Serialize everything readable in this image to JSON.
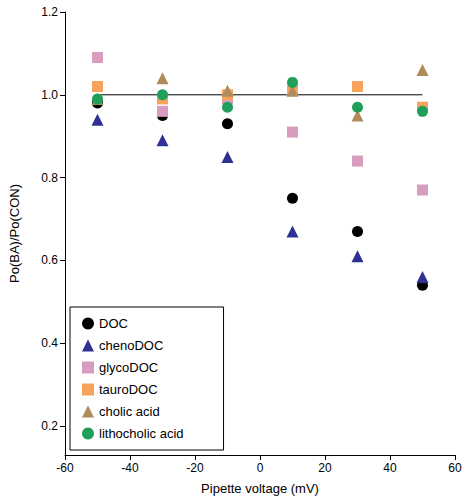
{
  "chart_data": {
    "type": "scatter",
    "x_label": "Pipette voltage (mV)",
    "y_label": "Po(BA)/Po(CON)",
    "xlim": [
      -60,
      60
    ],
    "xticks": [
      -60,
      -40,
      -20,
      0,
      20,
      40,
      60
    ],
    "ylim": [
      0.13,
      1.2
    ],
    "yticks": [
      0.2,
      0.4,
      0.6,
      0.8,
      {
        "value": 1,
        "label": "1.0"
      },
      1.2
    ],
    "grid": false,
    "legend": "lower left",
    "reference_lines": [
      {
        "y": 1,
        "x": [
          -50,
          50
        ],
        "color": "#000000"
      }
    ],
    "x": [
      -50,
      -30,
      -10,
      10,
      30,
      50
    ],
    "series": [
      {
        "name": "DOC",
        "color": "#000000",
        "marker": "circle",
        "values": [
          0.98,
          0.95,
          0.93,
          0.75,
          0.67,
          0.54
        ]
      },
      {
        "name": "chenoDOC",
        "color": "#2e3192",
        "marker": "triangle",
        "values": [
          0.94,
          0.89,
          0.85,
          0.67,
          0.61,
          0.56
        ]
      },
      {
        "name": "glycoDOC",
        "color": "#d89cbe",
        "marker": "square",
        "values": [
          1.09,
          0.96,
          0.99,
          0.91,
          0.84,
          0.77
        ]
      },
      {
        "name": "tauroDOC",
        "color": "#f7a35c",
        "marker": "square",
        "values": [
          1.02,
          0.99,
          1.0,
          1.01,
          1.02,
          0.97
        ]
      },
      {
        "name": "cholic acid",
        "color": "#b08b5c",
        "marker": "triangle",
        "values": [
          0.99,
          1.04,
          1.01,
          1.01,
          0.95,
          1.06
        ]
      },
      {
        "name": "lithocholic acid",
        "color": "#1ea05a",
        "marker": "circle",
        "values": [
          0.99,
          1.0,
          0.97,
          1.03,
          0.97,
          0.96
        ]
      }
    ]
  }
}
